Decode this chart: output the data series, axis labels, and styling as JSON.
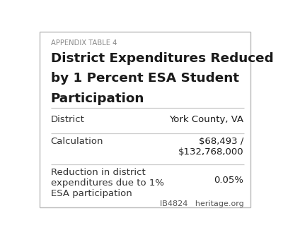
{
  "appendix_label": "APPENDIX TABLE 4",
  "title_line1": "District Expenditures Reduced",
  "title_line2": "by 1 Percent ESA Student",
  "title_line3": "Participation",
  "rows": [
    {
      "label": "District",
      "value": "York County, VA"
    },
    {
      "label": "Calculation",
      "value": "$68,493 /\n$132,768,000"
    },
    {
      "label": "Reduction in district\nexpenditures due to 1%\nESA participation",
      "value": "0.05%"
    }
  ],
  "footer": "IB4824   heritage.org",
  "bg_color": "#ffffff",
  "border_color": "#bbbbbb",
  "text_color": "#1a1a1a",
  "label_color": "#333333",
  "appendix_color": "#888888",
  "line_color": "#cccccc",
  "footer_color": "#555555"
}
